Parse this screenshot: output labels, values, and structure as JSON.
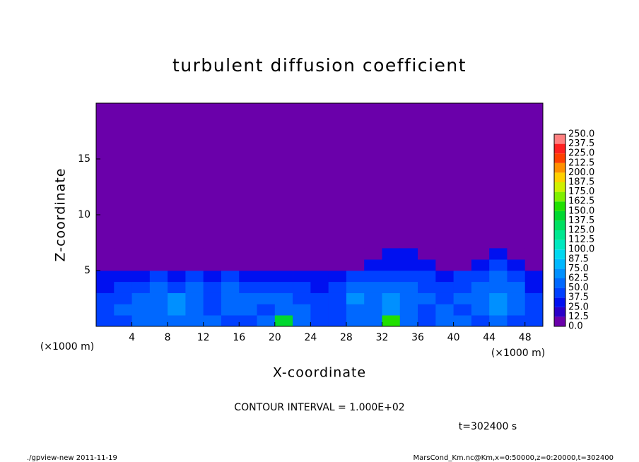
{
  "chart_data": {
    "type": "contour",
    "title": "turbulent diffusion coefficient",
    "xlabel": "X-coordinate",
    "ylabel": "Z-coordinate",
    "xunit": "(×1000 m)",
    "xlim": [
      0,
      50
    ],
    "xticks": [
      4,
      8,
      12,
      16,
      20,
      24,
      28,
      32,
      36,
      40,
      44,
      48
    ],
    "ylim": [
      0,
      20
    ],
    "yticks": [
      5,
      10,
      15
    ],
    "x": [
      1,
      3,
      5,
      7,
      9,
      11,
      13,
      15,
      17,
      19,
      21,
      23,
      25,
      27,
      29,
      31,
      33,
      35,
      37,
      39,
      41,
      43,
      45,
      47,
      49
    ],
    "z": [
      0.5,
      1.5,
      2.5,
      3.5,
      4.5,
      5.5,
      6.5
    ],
    "values": [
      [
        40,
        45,
        60,
        50,
        55,
        60,
        50,
        40,
        45,
        50,
        140,
        60,
        45,
        40,
        55,
        50,
        150,
        50,
        45,
        60,
        55,
        40,
        50,
        45,
        40
      ],
      [
        45,
        50,
        55,
        60,
        70,
        55,
        45,
        50,
        55,
        45,
        60,
        50,
        45,
        40,
        60,
        55,
        70,
        60,
        45,
        50,
        45,
        55,
        65,
        50,
        45
      ],
      [
        40,
        45,
        50,
        55,
        65,
        60,
        45,
        55,
        60,
        50,
        55,
        45,
        40,
        45,
        65,
        60,
        65,
        55,
        50,
        45,
        50,
        60,
        70,
        55,
        40
      ],
      [
        35,
        40,
        45,
        50,
        45,
        50,
        40,
        50,
        45,
        40,
        45,
        40,
        35,
        40,
        55,
        50,
        55,
        50,
        45,
        40,
        45,
        55,
        60,
        50,
        35
      ],
      [
        30,
        35,
        35,
        40,
        35,
        40,
        35,
        40,
        35,
        35,
        30,
        25,
        25,
        30,
        45,
        45,
        45,
        45,
        40,
        35,
        40,
        45,
        50,
        45,
        30
      ],
      [
        5,
        5,
        5,
        5,
        5,
        5,
        5,
        5,
        5,
        5,
        5,
        5,
        5,
        5,
        5,
        30,
        35,
        35,
        30,
        5,
        5,
        35,
        40,
        35,
        5
      ],
      [
        5,
        5,
        5,
        5,
        5,
        5,
        5,
        5,
        5,
        5,
        5,
        5,
        5,
        5,
        5,
        5,
        25,
        25,
        5,
        5,
        5,
        5,
        30,
        5,
        5
      ]
    ],
    "levels": [
      {
        "value": 0,
        "label": "0.0"
      },
      12.5,
      {
        "value": 25,
        "label": "25.0"
      },
      37.5,
      {
        "value": 50,
        "label": "50.0"
      },
      62.5,
      {
        "value": 75,
        "label": "75.0"
      },
      87.5,
      {
        "value": 100,
        "label": "100.0"
      },
      112.5,
      {
        "value": 125,
        "label": "125.0"
      },
      137.5,
      {
        "value": 150,
        "label": "150.0"
      },
      162.5,
      {
        "value": 175,
        "label": "175.0"
      },
      187.5,
      {
        "value": 200,
        "label": "200.0"
      },
      212.5,
      {
        "value": 225,
        "label": "225.0"
      },
      237.5,
      {
        "value": 250,
        "label": "250.0"
      }
    ],
    "colors": [
      "#6a00aa",
      "#2a00c8",
      "#0010f0",
      "#0040ff",
      "#0068ff",
      "#0090ff",
      "#00b8ff",
      "#00d8f0",
      "#00e8c0",
      "#00e890",
      "#00e060",
      "#00d830",
      "#20e000",
      "#80f000",
      "#d0f000",
      "#ffd000",
      "#ff9000",
      "#ff4000",
      "#ff2020",
      "#ff8080"
    ],
    "annotations": [
      "CONTOUR INTERVAL = 1.000E+02",
      "t=302400 s"
    ],
    "footer_left": "./gpview-new  2011-11-19",
    "footer_right": "MarsCond_Km.nc@Km,x=0:50000,z=0:20000,t=302400"
  }
}
